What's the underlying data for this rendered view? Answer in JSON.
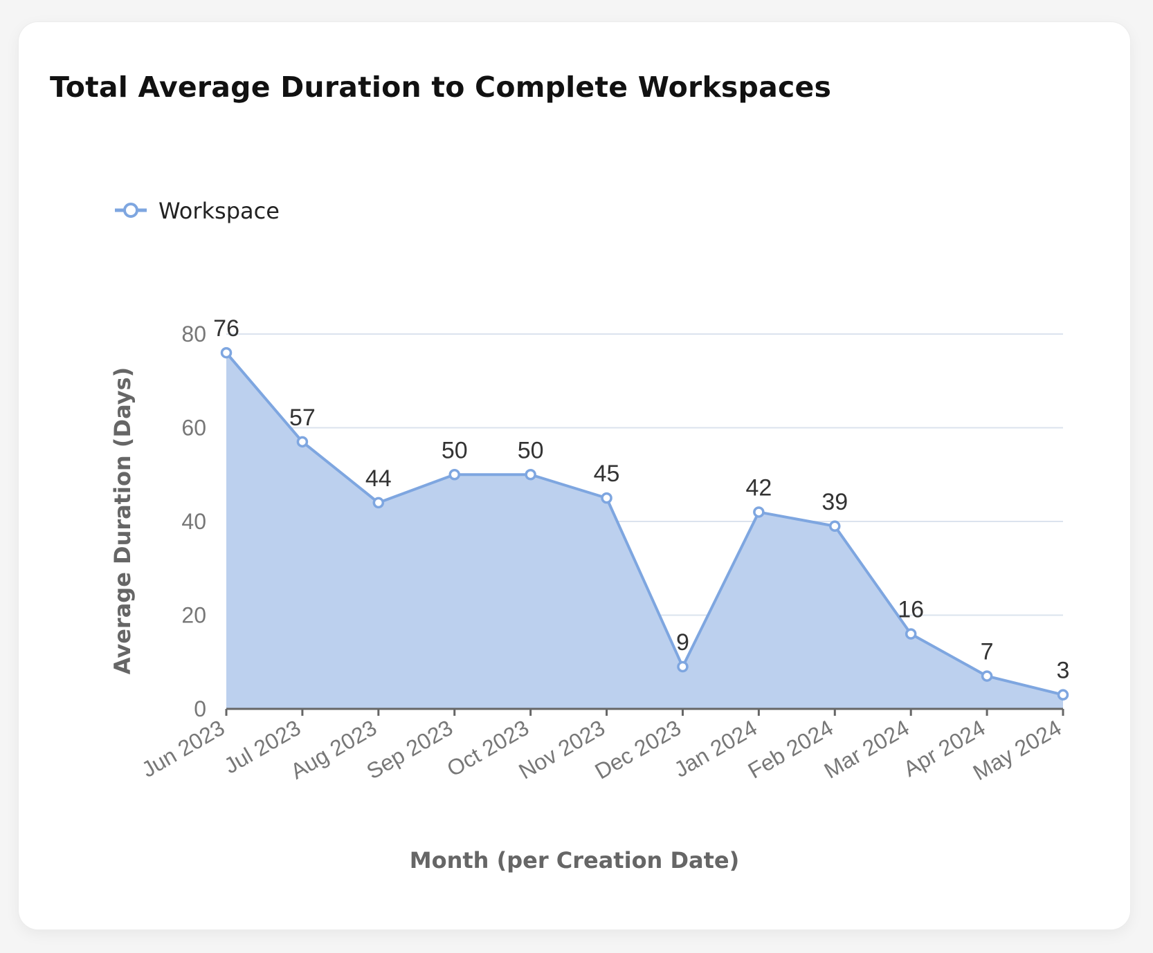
{
  "chart_data": {
    "type": "area",
    "title": "Total Average Duration to Complete Workspaces",
    "xlabel": "Month (per Creation Date)",
    "ylabel": "Average Duration (Days)",
    "categories": [
      "Jun 2023",
      "Jul 2023",
      "Aug 2023",
      "Sep 2023",
      "Oct 2023",
      "Nov 2023",
      "Dec 2023",
      "Jan 2024",
      "Feb 2024",
      "Mar 2024",
      "Apr 2024",
      "May 2024"
    ],
    "series": [
      {
        "name": "Workspace",
        "values": [
          76,
          57,
          44,
          50,
          50,
          45,
          9,
          42,
          39,
          16,
          7,
          3
        ],
        "line_color": "#7ea6e0",
        "fill_color": "#bcd0ee"
      }
    ],
    "ylim": [
      0,
      80
    ],
    "yticks": [
      0,
      20,
      40,
      60,
      80
    ],
    "grid": true,
    "legend_position": "top-left",
    "data_labels": true
  }
}
